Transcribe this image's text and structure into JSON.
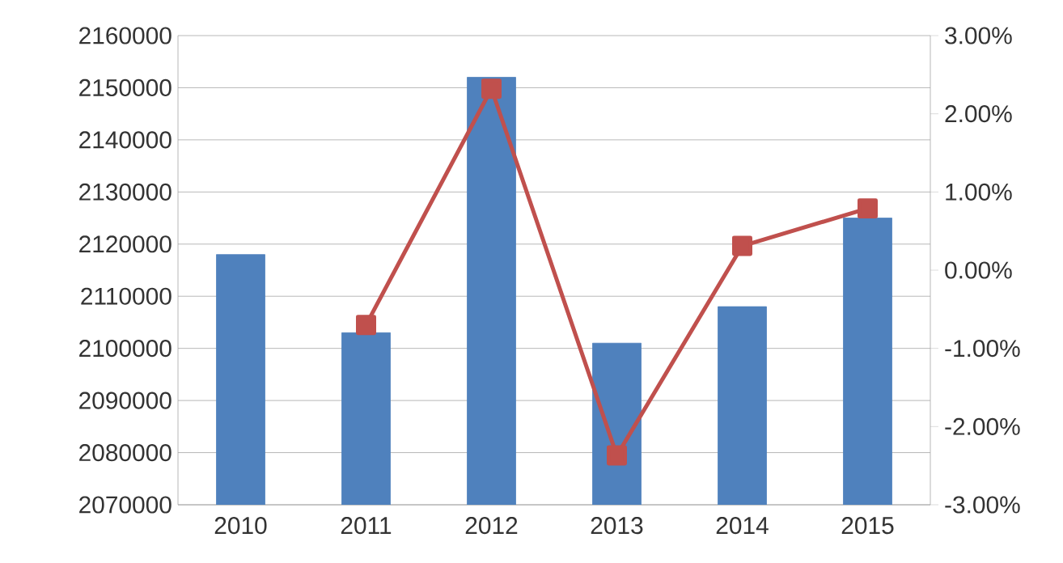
{
  "chart_data": {
    "type": "bar",
    "categories": [
      "2010",
      "2011",
      "2012",
      "2013",
      "2014",
      "2015"
    ],
    "series": [
      {
        "color": "#4f81bd",
        "values": [
          2118000,
          2103000,
          2152000,
          2101000,
          2108000,
          2125000
        ]
      },
      {
        "type": "line",
        "axis": "y2",
        "color": "#c0504d",
        "marker": "square",
        "line_style": "solid",
        "values": [
          null,
          -0.7,
          2.32,
          -2.37,
          0.31,
          0.79
        ]
      }
    ],
    "ylim": [
      2070000,
      2160000
    ],
    "yticks": [
      2070000,
      2080000,
      2090000,
      2100000,
      2110000,
      2120000,
      2130000,
      2140000,
      2150000,
      2160000
    ],
    "y2lim": [
      -3,
      3
    ],
    "y2ticks": [
      {
        "value": -3,
        "label": "-3.00%"
      },
      {
        "value": -2,
        "label": "-2.00%"
      },
      {
        "value": -1,
        "label": "-1.00%"
      },
      {
        "value": 0,
        "label": "0.00%"
      },
      {
        "value": 1,
        "label": "1.00%"
      },
      {
        "value": 2,
        "label": "2.00%"
      },
      {
        "value": 3,
        "label": "3.00%"
      }
    ],
    "grid": "y"
  }
}
